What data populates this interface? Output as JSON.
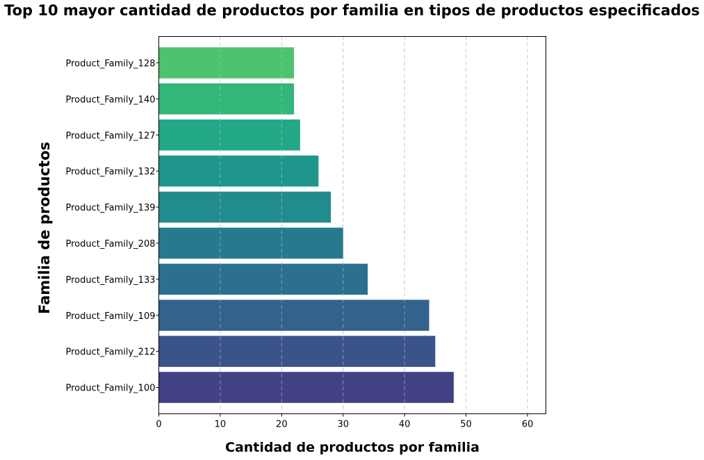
{
  "chart_data": {
    "type": "bar",
    "orientation": "horizontal",
    "title": "Top 10 mayor cantidad de productos por familia en tipos de productos especificados",
    "xlabel": "Cantidad de productos por familia",
    "ylabel": "Familia de productos",
    "categories": [
      "Product_Family_128",
      "Product_Family_140",
      "Product_Family_127",
      "Product_Family_132",
      "Product_Family_139",
      "Product_Family_208",
      "Product_Family_133",
      "Product_Family_109",
      "Product_Family_212",
      "Product_Family_100"
    ],
    "values": [
      22,
      22,
      23,
      26,
      28,
      30,
      34,
      44,
      45,
      48
    ],
    "colors": [
      "#4cc36c",
      "#33b679",
      "#22a884",
      "#1f968b",
      "#228b8d",
      "#277a8e",
      "#2c6f8e",
      "#33628d",
      "#3b538b",
      "#424186"
    ],
    "xlim": [
      0,
      63
    ],
    "xticks": [
      0,
      10,
      20,
      30,
      40,
      50,
      60
    ],
    "grid": "vertical dashed",
    "legend": "none"
  }
}
